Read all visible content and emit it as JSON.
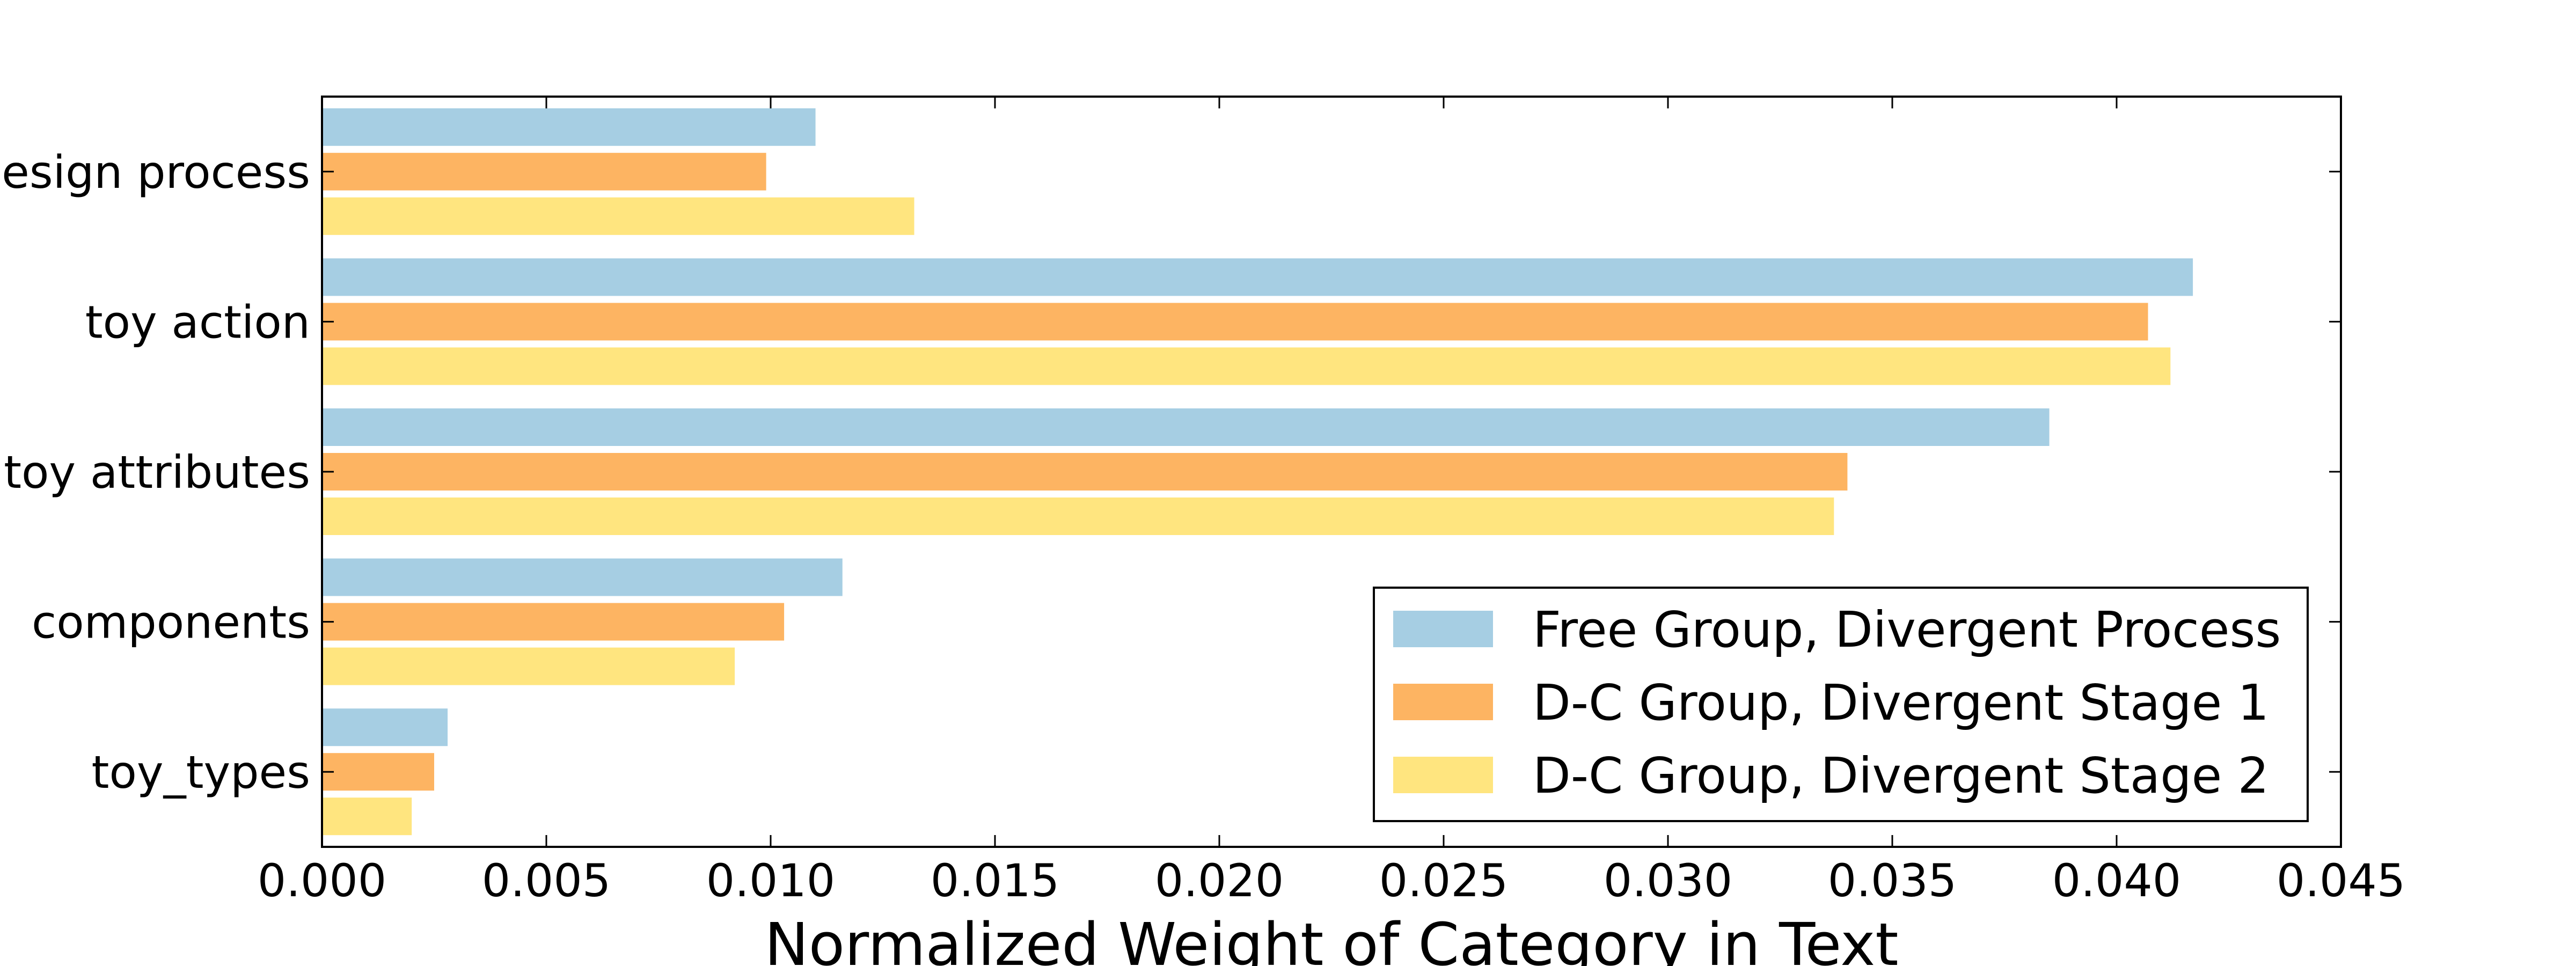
{
  "chart_data": {
    "type": "bar",
    "orientation": "horizontal",
    "categories": [
      "design process",
      "toy action",
      "toy attributes",
      "components",
      "toy_types"
    ],
    "series": [
      {
        "name": "Free Group, Divergent Process",
        "values": [
          0.011,
          0.0417,
          0.0385,
          0.0116,
          0.0028
        ],
        "color": "#a6cee3"
      },
      {
        "name": "D-C Group, Divergent Stage 1",
        "values": [
          0.0099,
          0.0407,
          0.034,
          0.0103,
          0.0025
        ],
        "color": "#fdb462"
      },
      {
        "name": "D-C Group, Divergent Stage 2",
        "values": [
          0.0132,
          0.0412,
          0.0337,
          0.0092,
          0.002
        ],
        "color": "#ffe57f"
      }
    ],
    "xlabel": "Normalized Weight of Category in Text",
    "ylabel": "",
    "title": "",
    "xlim": [
      0.0,
      0.045
    ],
    "xticks": [
      "0.000",
      "0.005",
      "0.010",
      "0.015",
      "0.020",
      "0.025",
      "0.030",
      "0.035",
      "0.040",
      "0.045"
    ],
    "grid": false,
    "legend_position": "lower-right"
  }
}
